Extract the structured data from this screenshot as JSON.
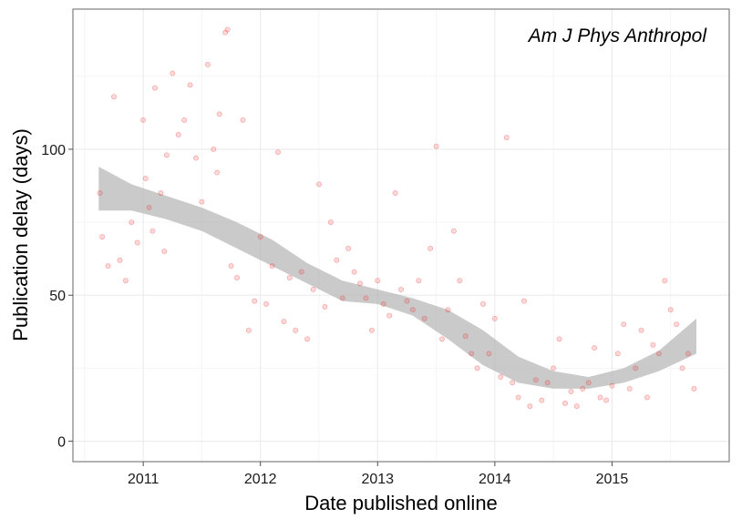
{
  "chart_data": {
    "type": "scatter",
    "title": "Am J Phys Anthropol",
    "xlabel": "Date published online",
    "ylabel": "Publication delay (days)",
    "x_ticks": [
      "2011",
      "2012",
      "2013",
      "2014",
      "2015"
    ],
    "x_tick_values": [
      2011,
      2012,
      2013,
      2014,
      2015
    ],
    "y_ticks": [
      "0",
      "50",
      "100"
    ],
    "y_tick_values": [
      0,
      50,
      100
    ],
    "xlim": [
      2010.4,
      2016.0
    ],
    "ylim": [
      -7,
      148
    ],
    "grid": true,
    "point_color": "#f03030",
    "smooth_band_color": "#b3b3b3",
    "series": [
      {
        "kind": "points",
        "x": [
          2010.63,
          2010.65,
          2010.7,
          2010.75,
          2010.8,
          2010.85,
          2010.9,
          2010.95,
          2011.0,
          2011.02,
          2011.05,
          2011.08,
          2011.1,
          2011.15,
          2011.18,
          2011.2,
          2011.25,
          2011.3,
          2011.35,
          2011.4,
          2011.45,
          2011.5,
          2011.55,
          2011.6,
          2011.63,
          2011.65,
          2011.7,
          2011.72,
          2011.75,
          2011.8,
          2011.85,
          2011.9,
          2011.95,
          2012.0,
          2012.05,
          2012.1,
          2012.15,
          2012.2,
          2012.25,
          2012.3,
          2012.35,
          2012.4,
          2012.45,
          2012.5,
          2012.55,
          2012.6,
          2012.65,
          2012.7,
          2012.75,
          2012.8,
          2012.85,
          2012.9,
          2012.95,
          2013.0,
          2013.05,
          2013.1,
          2013.15,
          2013.2,
          2013.25,
          2013.3,
          2013.35,
          2013.4,
          2013.45,
          2013.5,
          2013.55,
          2013.6,
          2013.65,
          2013.7,
          2013.75,
          2013.8,
          2013.85,
          2013.9,
          2013.95,
          2014.0,
          2014.05,
          2014.1,
          2014.15,
          2014.2,
          2014.25,
          2014.3,
          2014.35,
          2014.4,
          2014.45,
          2014.5,
          2014.55,
          2014.6,
          2014.65,
          2014.7,
          2014.75,
          2014.8,
          2014.85,
          2014.9,
          2014.95,
          2015.0,
          2015.05,
          2015.1,
          2015.15,
          2015.2,
          2015.25,
          2015.3,
          2015.35,
          2015.4,
          2015.45,
          2015.5,
          2015.55,
          2015.6,
          2015.65,
          2015.7
        ],
        "y": [
          85,
          70,
          60,
          118,
          62,
          55,
          75,
          68,
          110,
          90,
          80,
          72,
          121,
          85,
          65,
          98,
          126,
          105,
          110,
          122,
          97,
          82,
          129,
          100,
          92,
          112,
          140,
          141,
          60,
          56,
          110,
          38,
          48,
          70,
          47,
          60,
          99,
          41,
          56,
          38,
          58,
          35,
          52,
          88,
          46,
          75,
          62,
          49,
          66,
          58,
          54,
          49,
          38,
          55,
          47,
          43,
          85,
          52,
          48,
          45,
          55,
          42,
          66,
          101,
          35,
          45,
          72,
          55,
          36,
          30,
          25,
          47,
          30,
          42,
          22,
          104,
          20,
          15,
          48,
          12,
          21,
          14,
          20,
          25,
          35,
          13,
          17,
          12,
          18,
          20,
          32,
          15,
          14,
          19,
          30,
          40,
          18,
          25,
          38,
          15,
          33,
          30,
          55,
          45,
          40,
          25,
          30,
          18
        ]
      }
    ],
    "smooth": {
      "x": [
        2010.62,
        2010.9,
        2011.2,
        2011.5,
        2011.8,
        2012.1,
        2012.4,
        2012.7,
        2013.0,
        2013.3,
        2013.6,
        2013.9,
        2014.2,
        2014.5,
        2014.8,
        2015.1,
        2015.4,
        2015.72
      ],
      "lower": [
        79,
        79,
        76,
        72,
        66,
        60,
        54,
        48,
        47,
        43,
        35,
        26,
        20,
        18,
        18,
        20,
        24,
        30
      ],
      "upper": [
        94,
        88,
        84,
        80,
        75,
        69,
        61,
        55,
        52,
        49,
        45,
        38,
        29,
        24,
        22,
        25,
        31,
        42
      ]
    }
  }
}
